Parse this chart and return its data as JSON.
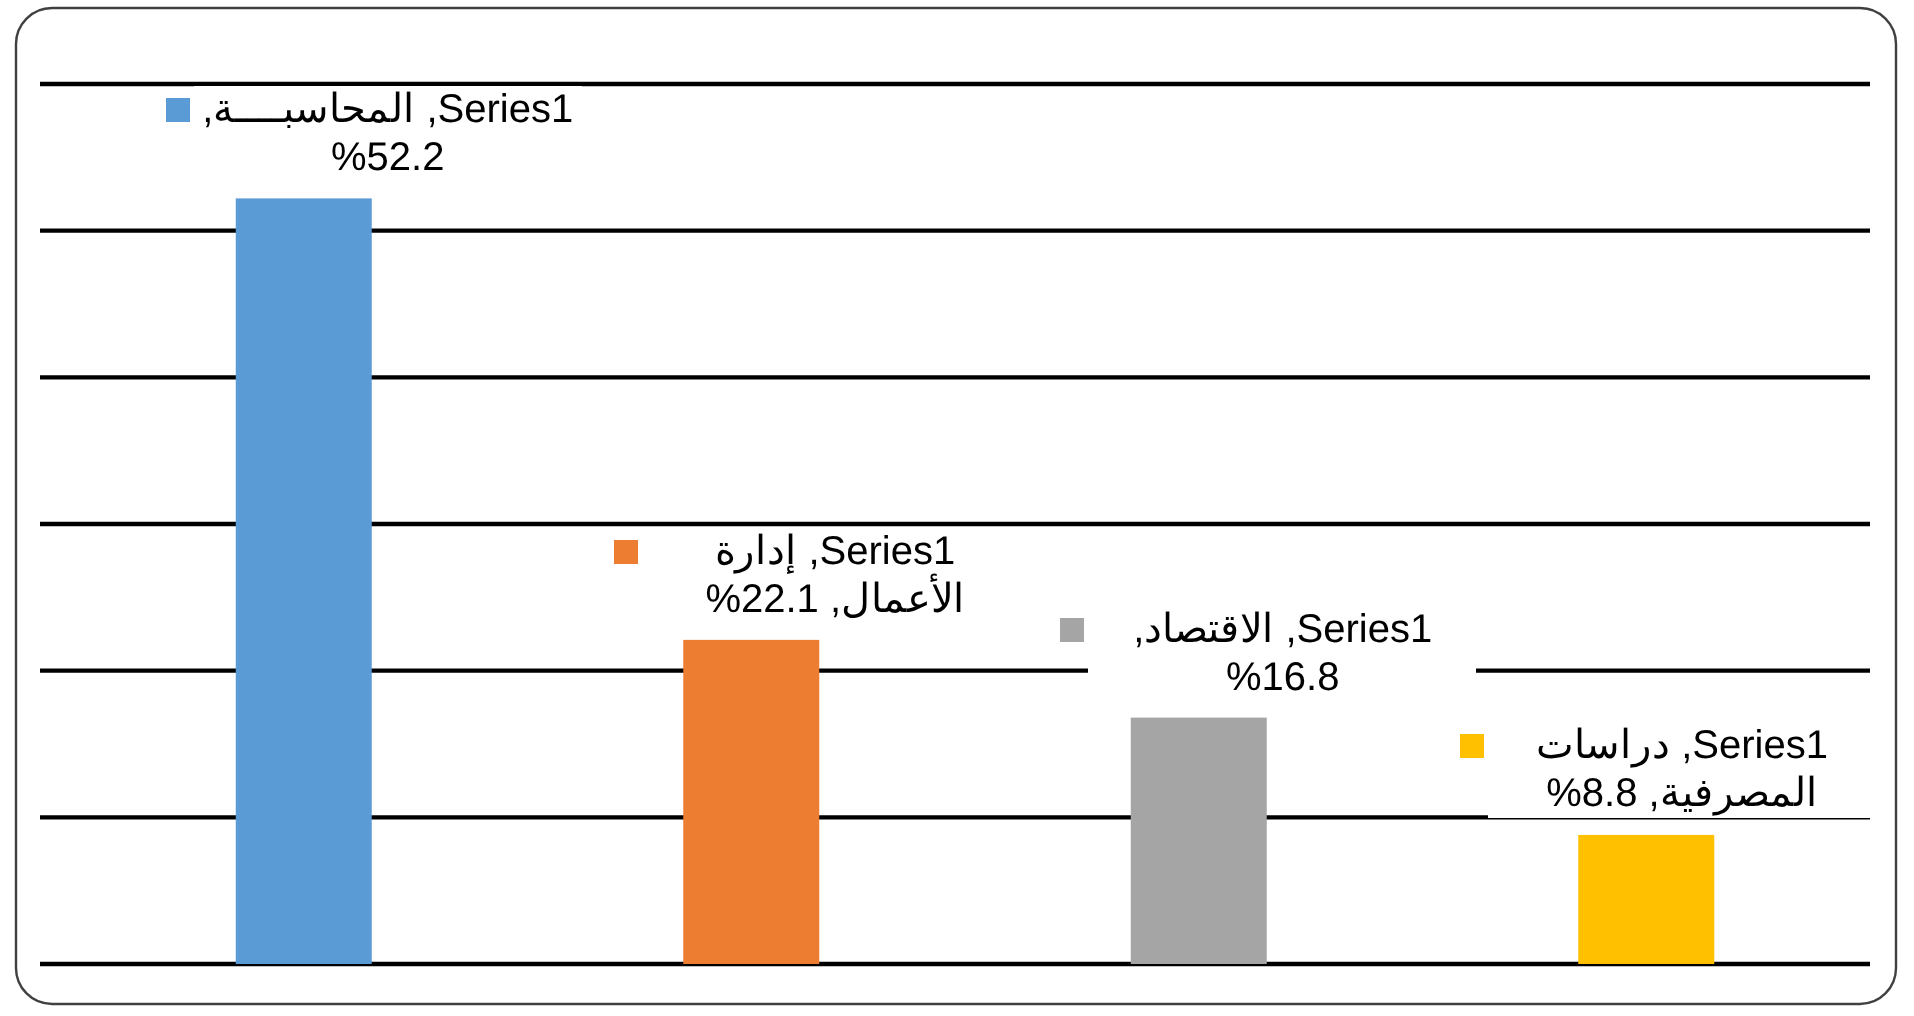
{
  "chart_data": {
    "type": "bar",
    "categories": [
      null,
      null,
      null,
      null
    ],
    "series": [
      {
        "colors": [
          "#5b9bd5",
          "#ed7d31",
          "#a5a5a5",
          "#ffc000"
        ],
        "values": [
          52.2,
          22.1,
          16.8,
          8.8
        ],
        "value_labels": [
          "Series1, المحاسبــــة, 52.2%",
          "Series1, إدارة الأعمال, 22.1%",
          "Series1, الاقتصاد, 16.8%",
          "Series1, دراسات المصرفية, 8.8%"
        ]
      }
    ],
    "ylim": [
      0,
      60
    ],
    "yticks": [
      {
        "value": 0,
        "label": null
      },
      {
        "value": 10,
        "label": null
      },
      {
        "value": 20,
        "label": null
      },
      {
        "value": 30,
        "label": null
      },
      {
        "value": 40,
        "label": null
      },
      {
        "value": 50,
        "label": null
      },
      {
        "value": 60,
        "label": null
      }
    ],
    "grid": "y",
    "tick_labels": false
  }
}
